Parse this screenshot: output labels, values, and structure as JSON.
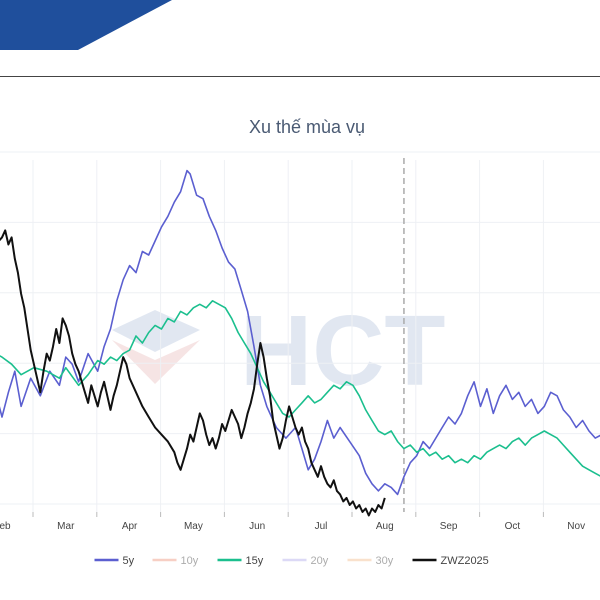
{
  "chart_data": {
    "type": "line",
    "title": "Xu thế mùa vụ",
    "x_ticks": [
      "Feb",
      "Mar",
      "Apr",
      "May",
      "Jun",
      "Jul",
      "Aug",
      "Sep",
      "Oct",
      "Nov"
    ],
    "xlim": [
      0,
      10
    ],
    "ylim": [
      0,
      100
    ],
    "grid": true,
    "legend_position": "bottom",
    "current_marker_month": 6.3,
    "watermark": "HCT",
    "series": [
      {
        "name": "5y",
        "color": "#5b5fd0",
        "width": 1.6,
        "visible": true,
        "points": [
          [
            -0.3,
            37
          ],
          [
            -0.1,
            34
          ],
          [
            0.0,
            27
          ],
          [
            0.1,
            34
          ],
          [
            0.2,
            40
          ],
          [
            0.3,
            30
          ],
          [
            0.45,
            38
          ],
          [
            0.6,
            33
          ],
          [
            0.75,
            40
          ],
          [
            0.9,
            36
          ],
          [
            1.0,
            44
          ],
          [
            1.1,
            42
          ],
          [
            1.2,
            37
          ],
          [
            1.35,
            45
          ],
          [
            1.5,
            40
          ],
          [
            1.6,
            47
          ],
          [
            1.7,
            52
          ],
          [
            1.8,
            60
          ],
          [
            1.9,
            66
          ],
          [
            2.0,
            70
          ],
          [
            2.1,
            68
          ],
          [
            2.2,
            74
          ],
          [
            2.3,
            73
          ],
          [
            2.4,
            77
          ],
          [
            2.5,
            81
          ],
          [
            2.6,
            84
          ],
          [
            2.7,
            88
          ],
          [
            2.8,
            91
          ],
          [
            2.9,
            97
          ],
          [
            2.95,
            96
          ],
          [
            3.05,
            90
          ],
          [
            3.15,
            89
          ],
          [
            3.25,
            84
          ],
          [
            3.35,
            80
          ],
          [
            3.45,
            75
          ],
          [
            3.55,
            71
          ],
          [
            3.65,
            69
          ],
          [
            3.75,
            63
          ],
          [
            3.85,
            57
          ],
          [
            3.95,
            47
          ],
          [
            4.05,
            36
          ],
          [
            4.15,
            30
          ],
          [
            4.3,
            24
          ],
          [
            4.45,
            21
          ],
          [
            4.6,
            24
          ],
          [
            4.7,
            18
          ],
          [
            4.8,
            12
          ],
          [
            4.9,
            15
          ],
          [
            5.0,
            20
          ],
          [
            5.1,
            26
          ],
          [
            5.2,
            21
          ],
          [
            5.3,
            24
          ],
          [
            5.45,
            20
          ],
          [
            5.6,
            16
          ],
          [
            5.7,
            11
          ],
          [
            5.8,
            8
          ],
          [
            5.9,
            6
          ],
          [
            6.0,
            8
          ],
          [
            6.1,
            7
          ],
          [
            6.2,
            5
          ],
          [
            6.3,
            10
          ],
          [
            6.4,
            14
          ],
          [
            6.5,
            16
          ],
          [
            6.6,
            20
          ],
          [
            6.7,
            18
          ],
          [
            6.8,
            21
          ],
          [
            6.9,
            24
          ],
          [
            7.0,
            27
          ],
          [
            7.1,
            25
          ],
          [
            7.2,
            28
          ],
          [
            7.3,
            33
          ],
          [
            7.4,
            37
          ],
          [
            7.5,
            30
          ],
          [
            7.6,
            35
          ],
          [
            7.7,
            28
          ],
          [
            7.8,
            33
          ],
          [
            7.9,
            36
          ],
          [
            8.0,
            32
          ],
          [
            8.1,
            34
          ],
          [
            8.2,
            30
          ],
          [
            8.3,
            32
          ],
          [
            8.4,
            28
          ],
          [
            8.5,
            30
          ],
          [
            8.6,
            34
          ],
          [
            8.7,
            33
          ],
          [
            8.8,
            29
          ],
          [
            8.9,
            27
          ],
          [
            9.0,
            24
          ],
          [
            9.1,
            26
          ],
          [
            9.2,
            23
          ],
          [
            9.3,
            21
          ],
          [
            9.4,
            22
          ],
          [
            9.5,
            20
          ],
          [
            9.6,
            16
          ],
          [
            9.7,
            14
          ]
        ]
      },
      {
        "name": "10y",
        "color": "#f0a08a",
        "width": 1.6,
        "visible": false,
        "points": []
      },
      {
        "name": "15y",
        "color": "#1bbf8e",
        "width": 1.6,
        "visible": true,
        "points": [
          [
            -0.3,
            42
          ],
          [
            -0.1,
            45
          ],
          [
            0.0,
            44
          ],
          [
            0.15,
            42
          ],
          [
            0.3,
            39
          ],
          [
            0.5,
            41
          ],
          [
            0.7,
            40
          ],
          [
            0.9,
            38
          ],
          [
            1.0,
            41
          ],
          [
            1.2,
            36
          ],
          [
            1.35,
            39
          ],
          [
            1.5,
            43
          ],
          [
            1.6,
            42
          ],
          [
            1.7,
            44
          ],
          [
            1.8,
            43
          ],
          [
            1.9,
            45
          ],
          [
            2.0,
            46
          ],
          [
            2.1,
            50
          ],
          [
            2.2,
            48
          ],
          [
            2.3,
            51
          ],
          [
            2.4,
            53
          ],
          [
            2.5,
            52
          ],
          [
            2.6,
            55
          ],
          [
            2.7,
            54
          ],
          [
            2.8,
            57
          ],
          [
            2.9,
            56
          ],
          [
            3.0,
            58
          ],
          [
            3.1,
            59
          ],
          [
            3.2,
            58
          ],
          [
            3.3,
            60
          ],
          [
            3.4,
            59
          ],
          [
            3.5,
            58
          ],
          [
            3.6,
            55
          ],
          [
            3.7,
            51
          ],
          [
            3.8,
            48
          ],
          [
            3.9,
            45
          ],
          [
            4.0,
            41
          ],
          [
            4.1,
            37
          ],
          [
            4.2,
            34
          ],
          [
            4.3,
            31
          ],
          [
            4.4,
            28
          ],
          [
            4.5,
            27
          ],
          [
            4.6,
            29
          ],
          [
            4.7,
            31
          ],
          [
            4.8,
            33
          ],
          [
            4.9,
            31
          ],
          [
            5.0,
            32
          ],
          [
            5.1,
            34
          ],
          [
            5.2,
            36
          ],
          [
            5.3,
            35
          ],
          [
            5.4,
            37
          ],
          [
            5.5,
            36
          ],
          [
            5.6,
            33
          ],
          [
            5.7,
            29
          ],
          [
            5.8,
            26
          ],
          [
            5.9,
            23
          ],
          [
            6.0,
            22
          ],
          [
            6.1,
            23
          ],
          [
            6.2,
            20
          ],
          [
            6.3,
            18
          ],
          [
            6.4,
            19
          ],
          [
            6.5,
            17
          ],
          [
            6.6,
            18
          ],
          [
            6.7,
            16
          ],
          [
            6.8,
            17
          ],
          [
            6.9,
            15
          ],
          [
            7.0,
            16
          ],
          [
            7.1,
            14
          ],
          [
            7.2,
            15
          ],
          [
            7.3,
            14
          ],
          [
            7.4,
            16
          ],
          [
            7.5,
            15
          ],
          [
            7.6,
            17
          ],
          [
            7.7,
            18
          ],
          [
            7.8,
            19
          ],
          [
            7.9,
            18
          ],
          [
            8.0,
            20
          ],
          [
            8.1,
            21
          ],
          [
            8.2,
            19
          ],
          [
            8.3,
            21
          ],
          [
            8.4,
            22
          ],
          [
            8.5,
            23
          ],
          [
            8.6,
            22
          ],
          [
            8.7,
            21
          ],
          [
            8.8,
            19
          ],
          [
            8.9,
            17
          ],
          [
            9.0,
            15
          ],
          [
            9.1,
            13
          ],
          [
            9.2,
            12
          ],
          [
            9.3,
            11
          ],
          [
            9.4,
            10
          ],
          [
            9.5,
            10
          ],
          [
            9.6,
            9
          ],
          [
            9.7,
            9
          ]
        ]
      },
      {
        "name": "20y",
        "color": "#b9b4ee",
        "width": 1.6,
        "visible": false,
        "points": []
      },
      {
        "name": "30y",
        "color": "#f4c49a",
        "width": 1.6,
        "visible": false,
        "points": []
      },
      {
        "name": "ZWZ2025",
        "color": "#111111",
        "width": 2.0,
        "visible": true,
        "points": [
          [
            -0.3,
            62
          ],
          [
            -0.2,
            71
          ],
          [
            -0.1,
            76
          ],
          [
            0.0,
            78
          ],
          [
            0.05,
            80
          ],
          [
            0.1,
            76
          ],
          [
            0.15,
            78
          ],
          [
            0.2,
            72
          ],
          [
            0.25,
            68
          ],
          [
            0.3,
            62
          ],
          [
            0.35,
            58
          ],
          [
            0.4,
            52
          ],
          [
            0.45,
            46
          ],
          [
            0.5,
            42
          ],
          [
            0.55,
            38
          ],
          [
            0.6,
            34
          ],
          [
            0.65,
            40
          ],
          [
            0.7,
            45
          ],
          [
            0.75,
            43
          ],
          [
            0.8,
            47
          ],
          [
            0.85,
            52
          ],
          [
            0.9,
            48
          ],
          [
            0.95,
            55
          ],
          [
            1.0,
            53
          ],
          [
            1.05,
            50
          ],
          [
            1.1,
            45
          ],
          [
            1.15,
            42
          ],
          [
            1.2,
            40
          ],
          [
            1.25,
            37
          ],
          [
            1.3,
            34
          ],
          [
            1.35,
            31
          ],
          [
            1.4,
            36
          ],
          [
            1.45,
            33
          ],
          [
            1.5,
            30
          ],
          [
            1.55,
            34
          ],
          [
            1.6,
            37
          ],
          [
            1.65,
            33
          ],
          [
            1.7,
            29
          ],
          [
            1.75,
            33
          ],
          [
            1.8,
            36
          ],
          [
            1.85,
            40
          ],
          [
            1.9,
            44
          ],
          [
            1.95,
            42
          ],
          [
            2.0,
            38
          ],
          [
            2.1,
            34
          ],
          [
            2.2,
            30
          ],
          [
            2.3,
            27
          ],
          [
            2.4,
            24
          ],
          [
            2.5,
            22
          ],
          [
            2.6,
            20
          ],
          [
            2.7,
            17
          ],
          [
            2.75,
            14
          ],
          [
            2.8,
            12
          ],
          [
            2.85,
            15
          ],
          [
            2.9,
            18
          ],
          [
            2.95,
            22
          ],
          [
            3.0,
            20
          ],
          [
            3.05,
            24
          ],
          [
            3.1,
            28
          ],
          [
            3.15,
            26
          ],
          [
            3.2,
            22
          ],
          [
            3.25,
            19
          ],
          [
            3.3,
            21
          ],
          [
            3.35,
            18
          ],
          [
            3.4,
            21
          ],
          [
            3.45,
            25
          ],
          [
            3.5,
            23
          ],
          [
            3.55,
            26
          ],
          [
            3.6,
            29
          ],
          [
            3.65,
            27
          ],
          [
            3.7,
            25
          ],
          [
            3.75,
            21
          ],
          [
            3.8,
            24
          ],
          [
            3.85,
            28
          ],
          [
            3.9,
            31
          ],
          [
            3.95,
            35
          ],
          [
            4.0,
            42
          ],
          [
            4.05,
            48
          ],
          [
            4.1,
            44
          ],
          [
            4.15,
            38
          ],
          [
            4.2,
            33
          ],
          [
            4.25,
            26
          ],
          [
            4.3,
            22
          ],
          [
            4.35,
            18
          ],
          [
            4.4,
            21
          ],
          [
            4.45,
            26
          ],
          [
            4.5,
            30
          ],
          [
            4.55,
            27
          ],
          [
            4.6,
            24
          ],
          [
            4.65,
            22
          ],
          [
            4.7,
            24
          ],
          [
            4.75,
            20
          ],
          [
            4.8,
            18
          ],
          [
            4.85,
            14
          ],
          [
            4.9,
            12
          ],
          [
            4.95,
            10
          ],
          [
            5.0,
            13
          ],
          [
            5.05,
            10
          ],
          [
            5.1,
            8
          ],
          [
            5.15,
            7
          ],
          [
            5.2,
            9
          ],
          [
            5.25,
            6
          ],
          [
            5.3,
            5
          ],
          [
            5.35,
            3
          ],
          [
            5.4,
            4
          ],
          [
            5.45,
            2
          ],
          [
            5.5,
            3
          ],
          [
            5.55,
            1
          ],
          [
            5.6,
            2
          ],
          [
            5.65,
            0
          ],
          [
            5.7,
            1
          ],
          [
            5.75,
            -1
          ],
          [
            5.8,
            1
          ],
          [
            5.85,
            0
          ],
          [
            5.9,
            2
          ],
          [
            5.95,
            1
          ],
          [
            6.0,
            4
          ]
        ]
      }
    ]
  }
}
